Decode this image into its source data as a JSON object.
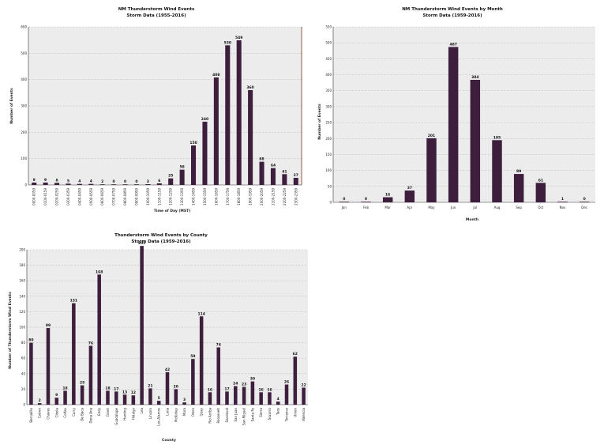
{
  "chart_data": [
    {
      "id": "hour",
      "type": "bar",
      "title": "NM Thunderstorm Wind Events",
      "subtitle": "Storm Data (1955-2016)",
      "xlabel": "Time of Day (MST)",
      "ylabel": "Number of Events",
      "ylim": [
        0,
        600
      ],
      "yticks": [
        0,
        100,
        200,
        300,
        400,
        500,
        600
      ],
      "grid": true,
      "bar_color": "#3d1f3d",
      "categories": [
        "0000-0059",
        "0100-0159",
        "0200-0259",
        "0300-0359",
        "0400-0459",
        "0500-0559",
        "0600-0659",
        "0700-0759",
        "0800-0859",
        "0900-0959",
        "1000-1059",
        "1100-1159",
        "1200-1259",
        "1300-1359",
        "1400-1459",
        "1500-1559",
        "1600-1659",
        "1700-1759",
        "1800-1859",
        "1900-1959",
        "2000-2059",
        "2100-2159",
        "2200-2259",
        "2300-2359"
      ],
      "values": [
        9,
        9,
        8,
        5,
        4,
        4,
        2,
        0,
        0,
        0,
        3,
        6,
        25,
        58,
        150,
        240,
        408,
        530,
        549,
        360,
        88,
        64,
        41,
        27
      ],
      "labels": [
        "9",
        "9",
        "8",
        "5",
        "4",
        "4",
        "2",
        "0",
        "0",
        "0",
        "3",
        "6",
        "25",
        "58",
        "150",
        "240",
        "408",
        "530",
        "549",
        "360",
        "88",
        "64",
        "41",
        "27"
      ]
    },
    {
      "id": "month",
      "type": "bar",
      "title": "NM Thunderstorm Wind Events by Month",
      "subtitle": "Storm Data (1959-2016)",
      "xlabel": "Month",
      "ylabel": "Number of Events",
      "ylim": [
        0,
        550
      ],
      "yticks": [
        0,
        50,
        100,
        150,
        200,
        250,
        300,
        350,
        400,
        450,
        500,
        550
      ],
      "grid": true,
      "bar_color": "#3d1f3d",
      "categories": [
        "Jan",
        "Feb",
        "Mar",
        "Apr",
        "May",
        "Jun",
        "Jul",
        "Aug",
        "Sep",
        "Oct",
        "Nov",
        "Dec"
      ],
      "values": [
        0,
        0,
        16,
        37,
        201,
        487,
        384,
        195,
        89,
        61,
        1,
        0
      ],
      "labels": [
        "0",
        "0",
        "16",
        "37",
        "201",
        "487",
        "384",
        "195",
        "89",
        "61",
        "1",
        "0"
      ]
    },
    {
      "id": "county",
      "type": "bar",
      "title": "Thunderstorm Wind Events by County",
      "subtitle": "Storm Data (1959-2016)",
      "xlabel": "County",
      "ylabel": "Number of Thunderstorm Wind Events",
      "ylim": [
        0,
        200
      ],
      "yticks": [
        0,
        20,
        40,
        60,
        80,
        100,
        120,
        140,
        160,
        180,
        200
      ],
      "grid": true,
      "bar_color": "#3d1f3d",
      "categories": [
        "Bernalillo",
        "Catron",
        "Chaves",
        "Cibola",
        "Colfax",
        "Curry",
        "De Baca",
        "Dona Ana",
        "Eddy",
        "Grant",
        "Guadalupe",
        "Harding",
        "Hidalgo",
        "Lea",
        "Lincoln",
        "Los Alamos",
        "Luna",
        "McKinley",
        "Mora",
        "Otero",
        "Quay",
        "Rio Arriba",
        "Roosevelt",
        "Sandoval",
        "San Juan",
        "San Miguel",
        "Santa Fe",
        "Sierra",
        "Socorro",
        "Taos",
        "Torrance",
        "Union",
        "Valencia"
      ],
      "values": [
        80,
        2,
        99,
        9,
        18,
        131,
        25,
        76,
        168,
        18,
        17,
        13,
        12,
        205,
        21,
        5,
        42,
        20,
        3,
        59,
        114,
        16,
        74,
        17,
        24,
        23,
        30,
        16,
        16,
        4,
        26,
        62,
        22
      ],
      "labels": [
        "80",
        "2",
        "99",
        "9",
        "18",
        "131",
        "25",
        "76",
        "168",
        "18",
        "17",
        "13",
        "12",
        "205",
        "21",
        "5",
        "42",
        "20",
        "3",
        "59",
        "114",
        "16",
        "74",
        "17",
        "24",
        "23",
        "30",
        "16",
        "16",
        "4",
        "26",
        "62",
        "22"
      ]
    }
  ]
}
